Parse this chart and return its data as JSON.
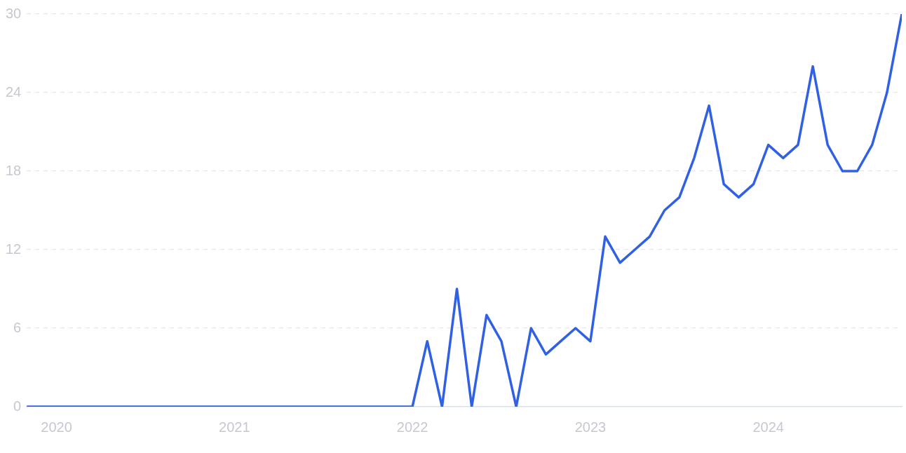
{
  "chart_data": {
    "type": "line",
    "x": [
      "2019-11",
      "2019-12",
      "2020-01",
      "2020-02",
      "2020-03",
      "2020-04",
      "2020-05",
      "2020-06",
      "2020-07",
      "2020-08",
      "2020-09",
      "2020-10",
      "2020-11",
      "2020-12",
      "2021-01",
      "2021-02",
      "2021-03",
      "2021-04",
      "2021-05",
      "2021-06",
      "2021-07",
      "2021-08",
      "2021-09",
      "2021-10",
      "2021-11",
      "2021-12",
      "2022-01",
      "2022-02",
      "2022-03",
      "2022-04",
      "2022-05",
      "2022-06",
      "2022-07",
      "2022-08",
      "2022-09",
      "2022-10",
      "2022-11",
      "2022-12",
      "2023-01",
      "2023-02",
      "2023-03",
      "2023-04",
      "2023-05",
      "2023-06",
      "2023-07",
      "2023-08",
      "2023-09",
      "2023-10",
      "2023-11",
      "2023-12",
      "2024-01",
      "2024-02",
      "2024-03",
      "2024-04",
      "2024-05",
      "2024-06",
      "2024-07",
      "2024-08",
      "2024-09",
      "2024-10"
    ],
    "series": [
      {
        "color": "#3060e4",
        "values": [
          0,
          0,
          0,
          0,
          0,
          0,
          0,
          0,
          0,
          0,
          0,
          0,
          0,
          0,
          0,
          0,
          0,
          0,
          0,
          0,
          0,
          0,
          0,
          0,
          0,
          0,
          0,
          5,
          0,
          9,
          0,
          7,
          5,
          0,
          6,
          4,
          5,
          6,
          5,
          13,
          11,
          12,
          13,
          15,
          16,
          19,
          23,
          17,
          16,
          17,
          20,
          19,
          20,
          26,
          20,
          18,
          18,
          20,
          24,
          30
        ]
      }
    ],
    "xlim": [
      "2019-11",
      "2024-10"
    ],
    "xticks": [
      {
        "value": "2020",
        "label": "2020"
      },
      {
        "value": "2021",
        "label": "2021"
      },
      {
        "value": "2022",
        "label": "2022"
      },
      {
        "value": "2023",
        "label": "2023"
      },
      {
        "value": "2024",
        "label": "2024"
      }
    ],
    "ylim": [
      0,
      30
    ],
    "yticks": [
      0,
      6,
      12,
      18,
      24,
      30
    ],
    "grid": "y",
    "legend": false,
    "marker": "none",
    "line_style": "solid"
  }
}
